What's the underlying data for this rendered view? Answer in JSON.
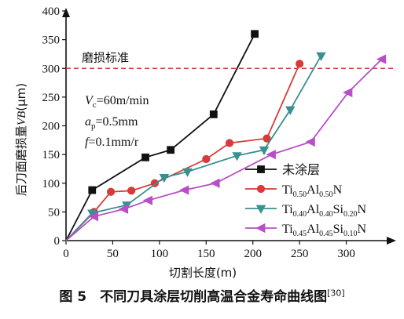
{
  "chart_data": {
    "type": "line",
    "xlabel": "切割长度(m)",
    "ylabel_main": "后刀面磨损量",
    "ylabel_var": "VB",
    "ylabel_unit": "(μm)",
    "xlim": [
      0,
      350
    ],
    "ylim": [
      0,
      400
    ],
    "x_ticks": [
      0,
      50,
      100,
      150,
      200,
      250,
      300
    ],
    "y_ticks": [
      0,
      50,
      100,
      150,
      200,
      250,
      300,
      350,
      400
    ],
    "threshold": {
      "y": 300,
      "label": "磨损标准",
      "color": "#d83a3a"
    },
    "conditions": {
      "vc": "V",
      "vc_sub": "c",
      "vc_val": "=60m/min",
      "ap": "a",
      "ap_sub": "p",
      "ap_val": "=0.5mm",
      "f": "f",
      "f_val": "=0.1mm/r"
    },
    "series": [
      {
        "name": "未涂层",
        "color": "#111111",
        "marker": "square",
        "x": [
          0,
          28,
          85,
          112,
          158,
          202
        ],
        "y": [
          0,
          88,
          145,
          158,
          220,
          360
        ]
      },
      {
        "name": "Ti0.50Al0.50N",
        "legend_parts": [
          "Ti",
          "0.50",
          "Al",
          "0.50",
          "N"
        ],
        "color": "#d83a3a",
        "marker": "circle",
        "x": [
          0,
          30,
          48,
          70,
          95,
          150,
          175,
          215,
          250
        ],
        "y": [
          0,
          50,
          85,
          87,
          100,
          142,
          170,
          178,
          308
        ]
      },
      {
        "name": "Ti0.40Al0.40Si0.20N",
        "legend_parts": [
          "Ti",
          "0.40",
          "Al",
          "0.40",
          "Si",
          "0.20",
          "N"
        ],
        "color": "#3a8f8f",
        "marker": "triangle-down",
        "x": [
          0,
          28,
          65,
          105,
          130,
          183,
          212,
          240,
          273
        ],
        "y": [
          0,
          48,
          62,
          110,
          120,
          148,
          158,
          228,
          322
        ]
      },
      {
        "name": "Ti0.45Al0.45Si0.10N",
        "legend_parts": [
          "Ti",
          "0.45",
          "Al",
          "0.45",
          "Si",
          "0.10",
          "N"
        ],
        "color": "#b84fc8",
        "marker": "triangle-left",
        "x": [
          0,
          30,
          62,
          88,
          127,
          160,
          220,
          262,
          302,
          338
        ],
        "y": [
          0,
          42,
          55,
          70,
          88,
          100,
          150,
          172,
          258,
          316
        ]
      }
    ]
  },
  "caption": {
    "text": "图 5　不同刀具涂层切削高温合金寿命曲线图",
    "ref": "[30]"
  }
}
